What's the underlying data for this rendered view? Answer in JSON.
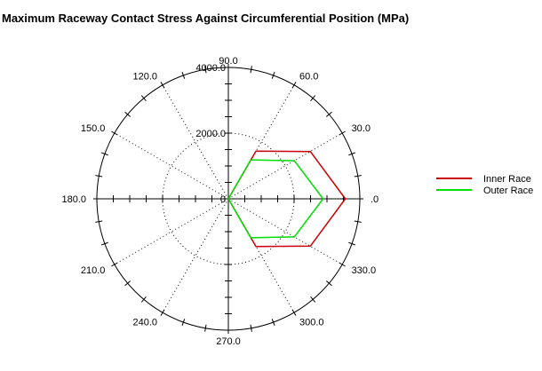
{
  "chart_data": {
    "type": "line",
    "subtype": "polar",
    "title": "Maximum Raceway Contact Stress Against Circumferential Position (MPa)",
    "r_range": [
      0,
      4000
    ],
    "radial_ticks": [
      {
        "value": 0,
        "label": "0"
      },
      {
        "value": 2000,
        "label": "2000.0"
      },
      {
        "value": 4000,
        "label": "4000.0"
      }
    ],
    "angle_ticks": [
      {
        "angle": 0,
        "label": ".0"
      },
      {
        "angle": 30,
        "label": "30.0"
      },
      {
        "angle": 60,
        "label": "60.0"
      },
      {
        "angle": 90,
        "label": "90.0"
      },
      {
        "angle": 120,
        "label": "120.0"
      },
      {
        "angle": 150,
        "label": "150.0"
      },
      {
        "angle": 180,
        "label": "180.0"
      },
      {
        "angle": 210,
        "label": "210.0"
      },
      {
        "angle": 240,
        "label": "240.0"
      },
      {
        "angle": 270,
        "label": "270.0"
      },
      {
        "angle": 300,
        "label": "300.0"
      },
      {
        "angle": 330,
        "label": "330.0"
      }
    ],
    "angles": [
      0,
      30,
      60,
      90,
      180,
      270,
      300,
      330
    ],
    "series": [
      {
        "name": "Inner Race",
        "color": "#cc0000",
        "values": [
          3560,
          2880,
          1680,
          0,
          0,
          0,
          1680,
          2880
        ]
      },
      {
        "name": "Outer Race",
        "color": "#00dd00",
        "values": [
          2880,
          2320,
          1370,
          0,
          0,
          0,
          1370,
          2320
        ]
      }
    ],
    "grid": true,
    "legend_position": "right"
  }
}
